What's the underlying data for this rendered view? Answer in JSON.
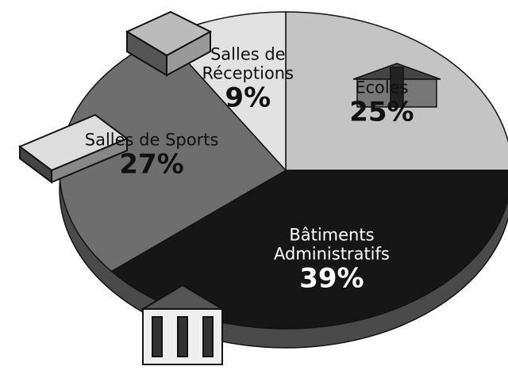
{
  "chart_data": {
    "type": "pie",
    "categories": [
      "Ecoles",
      "Bâtiments Administratifs",
      "Salles de Sports",
      "Salles de Réceptions"
    ],
    "values": [
      25,
      39,
      27,
      9
    ],
    "value_labels": [
      "25%",
      "39%",
      "27%",
      "9%"
    ],
    "colors": [
      "#c4c4c4",
      "#161616",
      "#6e6e6e",
      "#e2e2e2"
    ]
  }
}
